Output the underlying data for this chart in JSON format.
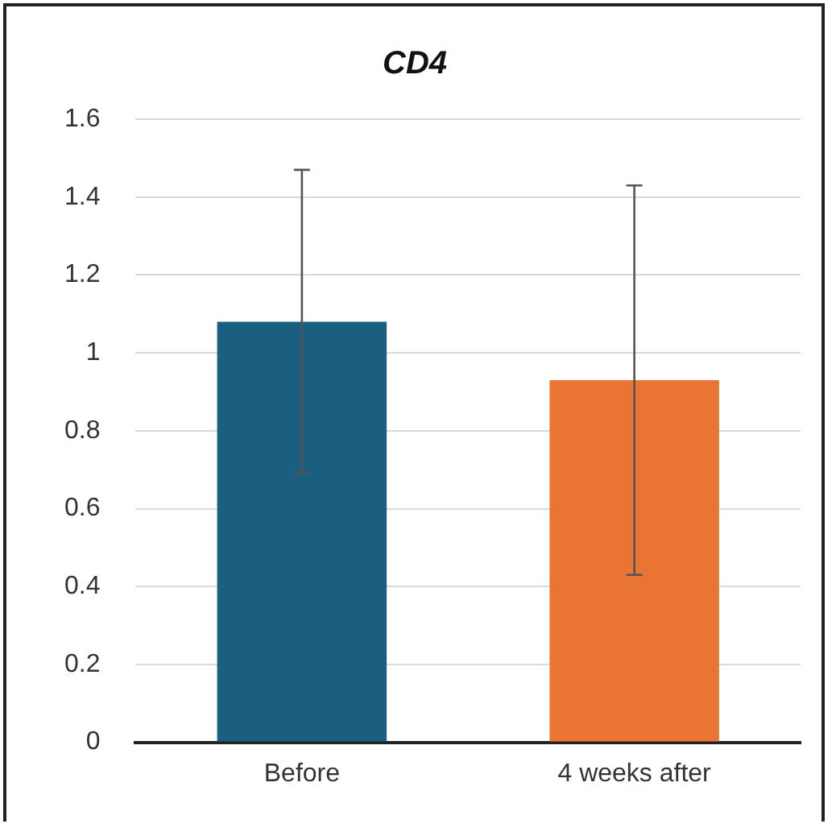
{
  "chart_data": {
    "type": "bar",
    "title": "CD4",
    "categories": [
      "Before",
      "4 weeks after"
    ],
    "values": [
      1.08,
      0.93
    ],
    "colors": [
      "#1a5e80",
      "#ea7434"
    ],
    "errors": [
      0.39,
      0.5
    ],
    "ylim": [
      0,
      1.6
    ],
    "yticks": [
      0,
      0.2,
      0.4,
      0.6,
      0.8,
      1,
      1.2,
      1.4,
      1.6
    ],
    "grid": "y",
    "legend": false
  }
}
